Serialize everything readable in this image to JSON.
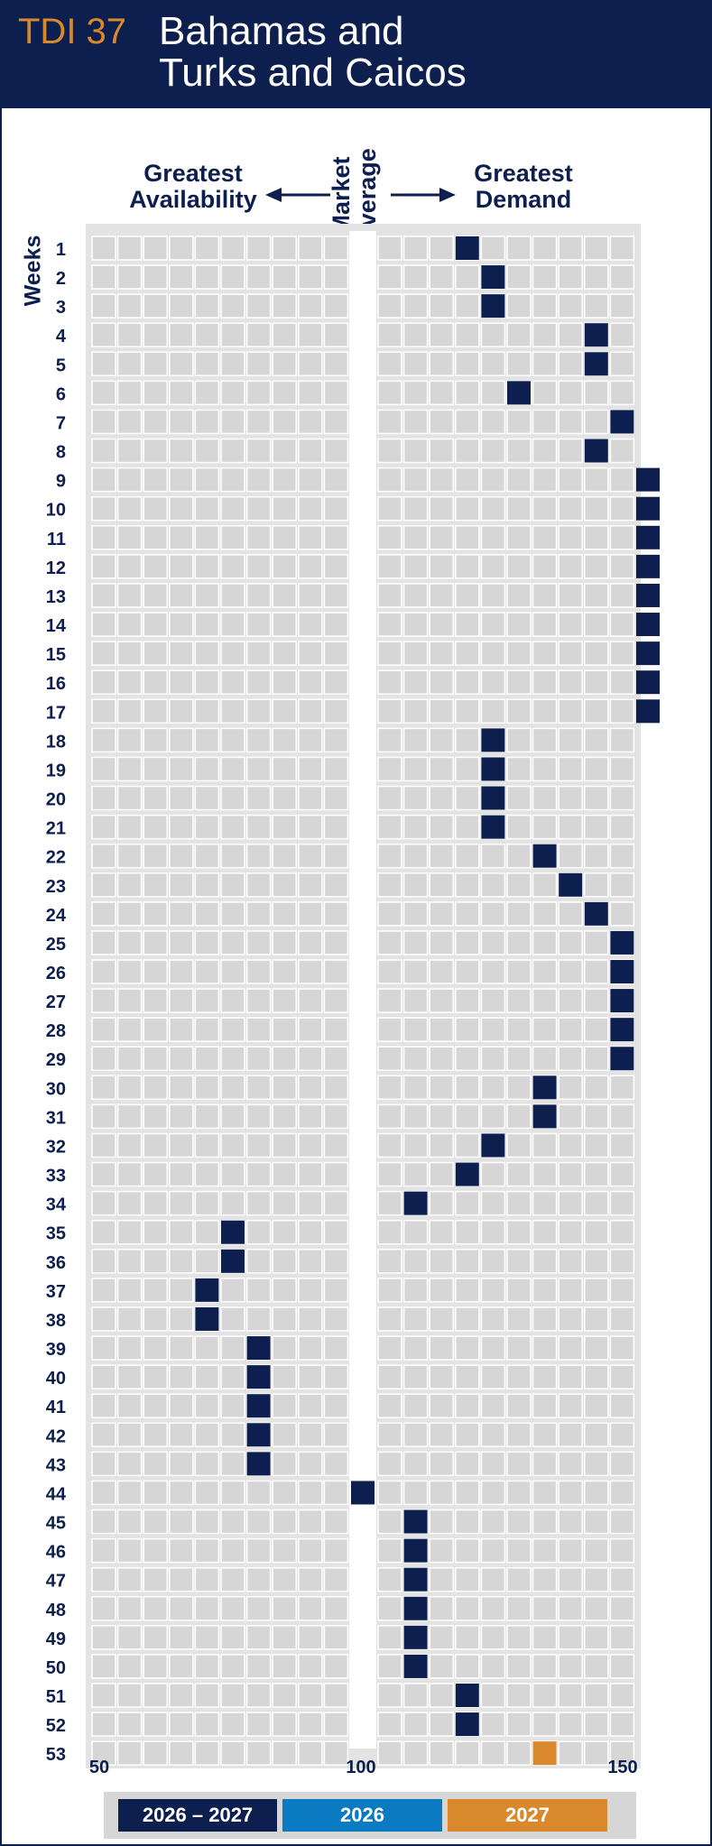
{
  "header": {
    "code": "TDI 37",
    "title_line1": "Bahamas and",
    "title_line2": "Turks and Caicos"
  },
  "labels": {
    "left_line1": "Greatest",
    "left_line2": "Availability",
    "market_line1": "Market",
    "market_line2": "Average",
    "right_line1": "Greatest",
    "right_line2": "Demand",
    "weeks": "Weeks"
  },
  "colors": {
    "navy": "#0d1f4e",
    "orange": "#d9892b",
    "blue": "#0a7ac2",
    "cell": "#d6d6d6",
    "panel": "#e3e3e3"
  },
  "legend": [
    {
      "label": "2026 – 2027",
      "color": "#0d1f4e"
    },
    {
      "label": "2026",
      "color": "#0a7ac2"
    },
    {
      "label": "2027",
      "color": "#d9892b"
    }
  ],
  "chart_data": {
    "type": "scatter",
    "xlabel": "",
    "ylabel": "Weeks",
    "xlim": [
      50,
      150
    ],
    "x_ticks": [
      50,
      100,
      150
    ],
    "weeks": [
      1,
      2,
      3,
      4,
      5,
      6,
      7,
      8,
      9,
      10,
      11,
      12,
      13,
      14,
      15,
      16,
      17,
      18,
      19,
      20,
      21,
      22,
      23,
      24,
      25,
      26,
      27,
      28,
      29,
      30,
      31,
      32,
      33,
      34,
      35,
      36,
      37,
      38,
      39,
      40,
      41,
      42,
      43,
      44,
      45,
      46,
      47,
      48,
      49,
      50,
      51,
      52,
      53
    ],
    "values": [
      117,
      122,
      122,
      142,
      142,
      127,
      147,
      142,
      152,
      152,
      152,
      152,
      152,
      152,
      152,
      152,
      152,
      122,
      122,
      122,
      122,
      132,
      137,
      142,
      147,
      147,
      147,
      147,
      147,
      132,
      132,
      122,
      117,
      107,
      77,
      77,
      72,
      72,
      82,
      82,
      82,
      82,
      82,
      102,
      107,
      107,
      107,
      107,
      107,
      107,
      117,
      117,
      132
    ],
    "series": [
      {
        "name": "2026 – 2027",
        "weeks": [
          1,
          2,
          3,
          4,
          5,
          6,
          7,
          8,
          9,
          10,
          11,
          12,
          13,
          14,
          15,
          16,
          17,
          18,
          19,
          20,
          21,
          22,
          23,
          24,
          25,
          26,
          27,
          28,
          29,
          30,
          31,
          32,
          33,
          34,
          35,
          36,
          37,
          38,
          39,
          40,
          41,
          42,
          43,
          44,
          45,
          46,
          47,
          48,
          49,
          50,
          51,
          52
        ]
      },
      {
        "name": "2027",
        "weeks": [
          53
        ]
      }
    ],
    "grid": true
  }
}
